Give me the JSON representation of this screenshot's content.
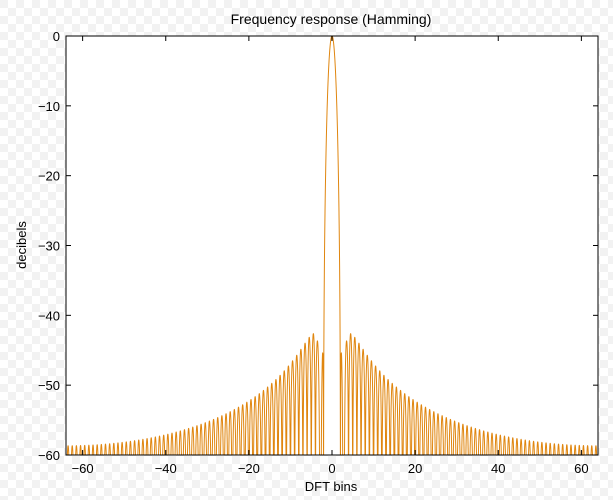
{
  "chart_data": {
    "type": "line",
    "title": "Frequency response (Hamming)",
    "xlabel": "DFT bins",
    "ylabel": "decibels",
    "xlim": [
      -64,
      64
    ],
    "ylim": [
      -60,
      0
    ],
    "xticks": [
      -60,
      -40,
      -20,
      0,
      20,
      40,
      60
    ],
    "yticks": [
      0,
      -10,
      -20,
      -30,
      -40,
      -50,
      -60
    ],
    "xtick_labels": [
      "−60",
      "−40",
      "−20",
      "0",
      "20",
      "40",
      "60"
    ],
    "ytick_labels": [
      "0",
      "−10",
      "−20",
      "−30",
      "−40",
      "−50",
      "−60"
    ],
    "grid": false,
    "series": [
      {
        "color": "#E0860F",
        "window": "Hamming",
        "floor_db": -60,
        "mainlobe_half_width_bins": 2,
        "sidelobe_peak_db": -43
      }
    ]
  }
}
